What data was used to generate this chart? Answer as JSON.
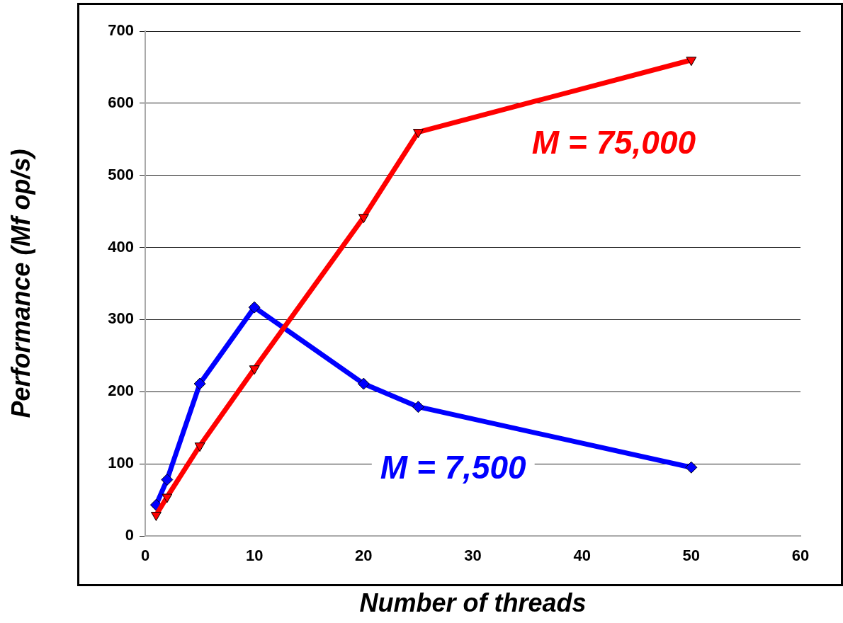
{
  "chart_data": {
    "type": "line",
    "xlabel": "Number of threads",
    "ylabel": "Performance (Mf op/s)",
    "xlim": [
      0,
      60
    ],
    "xticks": [
      0,
      10,
      20,
      30,
      40,
      50,
      60
    ],
    "ylim": [
      0,
      700
    ],
    "yticks": [
      0,
      100,
      200,
      300,
      400,
      500,
      600,
      700
    ],
    "grid": "y",
    "legend": false,
    "line_style": "solid",
    "series": [
      {
        "name": "M = 75,000",
        "color": "#ff0000",
        "marker": "triangle",
        "x": [
          1,
          2,
          5,
          10,
          20,
          25,
          50
        ],
        "values": [
          29,
          54,
          125,
          232,
          442,
          560,
          660
        ]
      },
      {
        "name": "M = 7,500",
        "color": "#0000ff",
        "marker": "diamond",
        "x": [
          1,
          2,
          5,
          10,
          20,
          25,
          50
        ],
        "values": [
          43,
          78,
          211,
          317,
          211,
          179,
          95
        ]
      }
    ]
  }
}
